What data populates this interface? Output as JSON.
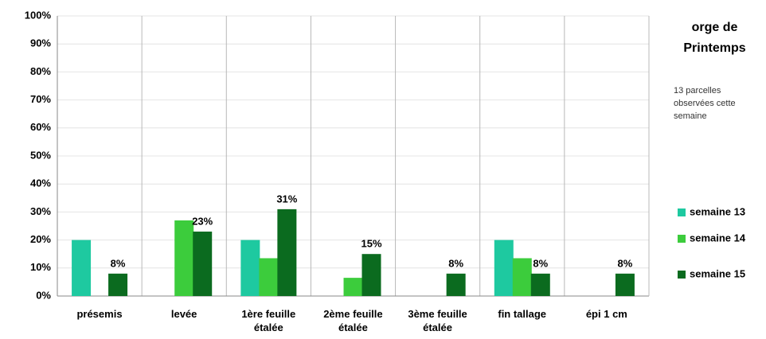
{
  "chart_data": {
    "type": "bar",
    "title": "orge de Printemps",
    "subtitle": "13 parcelles observées cette semaine",
    "categories": [
      "présemis",
      "levée",
      "1ère feuille étalée",
      "2ème feuille étalée",
      "3ème feuille étalée",
      "fin tallage",
      "épi 1 cm"
    ],
    "series": [
      {
        "name": "semaine 13",
        "color": "#1ec9a0",
        "values": [
          20,
          0,
          20,
          0,
          0,
          20,
          0
        ]
      },
      {
        "name": "semaine 14",
        "color": "#3ccc3c",
        "values": [
          0,
          27,
          13.5,
          6.5,
          0,
          13.5,
          0
        ]
      },
      {
        "name": "semaine 15",
        "color": "#0b6b1f",
        "values": [
          8,
          23,
          31,
          15,
          8,
          8,
          8
        ],
        "value_labels": [
          "8%",
          "23%",
          "31%",
          "15%",
          "8%",
          "8%",
          "8%"
        ]
      }
    ],
    "ylim": [
      0,
      100
    ],
    "yticks": [
      {
        "value": 0,
        "label": "0%"
      },
      {
        "value": 10,
        "label": "10%"
      },
      {
        "value": 20,
        "label": "20%"
      },
      {
        "value": 30,
        "label": "30%"
      },
      {
        "value": 40,
        "label": "40%"
      },
      {
        "value": 50,
        "label": "50%"
      },
      {
        "value": 60,
        "label": "60%"
      },
      {
        "value": 70,
        "label": "70%"
      },
      {
        "value": 80,
        "label": "80%"
      },
      {
        "value": 90,
        "label": "90%"
      },
      {
        "value": 100,
        "label": "100%"
      }
    ],
    "grid": true,
    "legend": "right"
  }
}
